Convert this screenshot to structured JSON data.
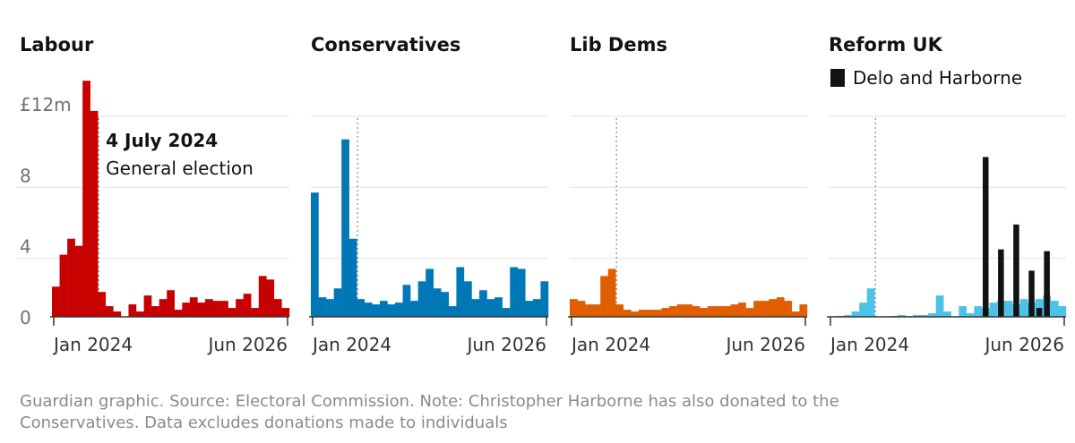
{
  "chart_data": [
    {
      "type": "bar",
      "title": "Labour",
      "color": "#c70000",
      "ylim": [
        0,
        12
      ],
      "yticks": [
        {
          "value": 0,
          "label": "0"
        },
        {
          "value": 4,
          "label": "4"
        },
        {
          "value": 8,
          "label": "8"
        },
        {
          "value": 12,
          "label": "£12m"
        }
      ],
      "xticks": [
        "Jan 2024",
        "Jun 2026"
      ],
      "event": {
        "label": "4 July 2024",
        "sublabel": "General election"
      },
      "values": [
        1.7,
        3.5,
        4.4,
        4.0,
        13.3,
        11.6,
        1.4,
        0.6,
        0.3,
        0.0,
        0.7,
        0.3,
        1.2,
        0.6,
        1.0,
        1.5,
        0.4,
        0.8,
        1.1,
        0.8,
        1.0,
        0.9,
        0.9,
        0.5,
        1.0,
        1.3,
        0.5,
        2.3,
        2.1,
        1.0,
        0.5
      ]
    },
    {
      "type": "bar",
      "title": "Conservatives",
      "color": "#0077b6",
      "ylim": [
        0,
        12
      ],
      "xticks": [
        "Jan 2024",
        "Jun 2026"
      ],
      "values": [
        7.0,
        1.1,
        1.0,
        1.6,
        10.0,
        4.4,
        1.0,
        0.8,
        0.7,
        0.9,
        0.7,
        0.8,
        1.8,
        0.9,
        2.0,
        2.7,
        1.6,
        1.4,
        0.6,
        2.8,
        2.0,
        1.0,
        1.5,
        1.0,
        1.1,
        0.5,
        2.8,
        2.7,
        0.9,
        1.0,
        2.0
      ]
    },
    {
      "type": "bar",
      "title": "Lib Dems",
      "color": "#e05e00",
      "ylim": [
        0,
        12
      ],
      "xticks": [
        "Jan 2024",
        "Jun 2026"
      ],
      "values": [
        1.0,
        0.9,
        0.7,
        0.7,
        2.3,
        2.7,
        0.7,
        0.4,
        0.3,
        0.4,
        0.4,
        0.4,
        0.5,
        0.6,
        0.7,
        0.7,
        0.6,
        0.5,
        0.6,
        0.6,
        0.6,
        0.7,
        0.8,
        0.5,
        0.9,
        0.9,
        1.0,
        1.1,
        0.9,
        0.3,
        0.7
      ]
    },
    {
      "type": "bar",
      "title": "Reform UK",
      "color": "#4cc2e8",
      "ylim": [
        0,
        12
      ],
      "xticks": [
        "Jan 2024",
        "Jun 2026"
      ],
      "legend": {
        "label": "Delo and Harborne",
        "color": "#121212"
      },
      "values": [
        0.0,
        0.05,
        0.1,
        0.3,
        0.8,
        1.6,
        0.0,
        0.0,
        0.05,
        0.1,
        0.05,
        0.1,
        0.1,
        0.2,
        1.2,
        0.3,
        0.0,
        0.6,
        0.2,
        0.6,
        0.5,
        0.8,
        0.9,
        0.9,
        0.7,
        1.0,
        0.8,
        1.0,
        1.2,
        0.9,
        0.6
      ],
      "highlight_values": [
        0,
        0,
        0,
        0,
        0,
        0,
        0,
        0,
        0,
        0,
        0,
        0,
        0,
        0,
        0,
        0,
        0,
        0,
        0,
        0,
        9.0,
        0,
        3.8,
        0,
        5.2,
        0,
        2.6,
        0.5,
        3.7,
        0,
        0
      ]
    }
  ],
  "footer": {
    "line1": "Guardian graphic. Source: Electoral Commission. Note: Christopher Harborne has also donated to the",
    "line2": "Conservatives. Data excludes donations made to individuals"
  }
}
